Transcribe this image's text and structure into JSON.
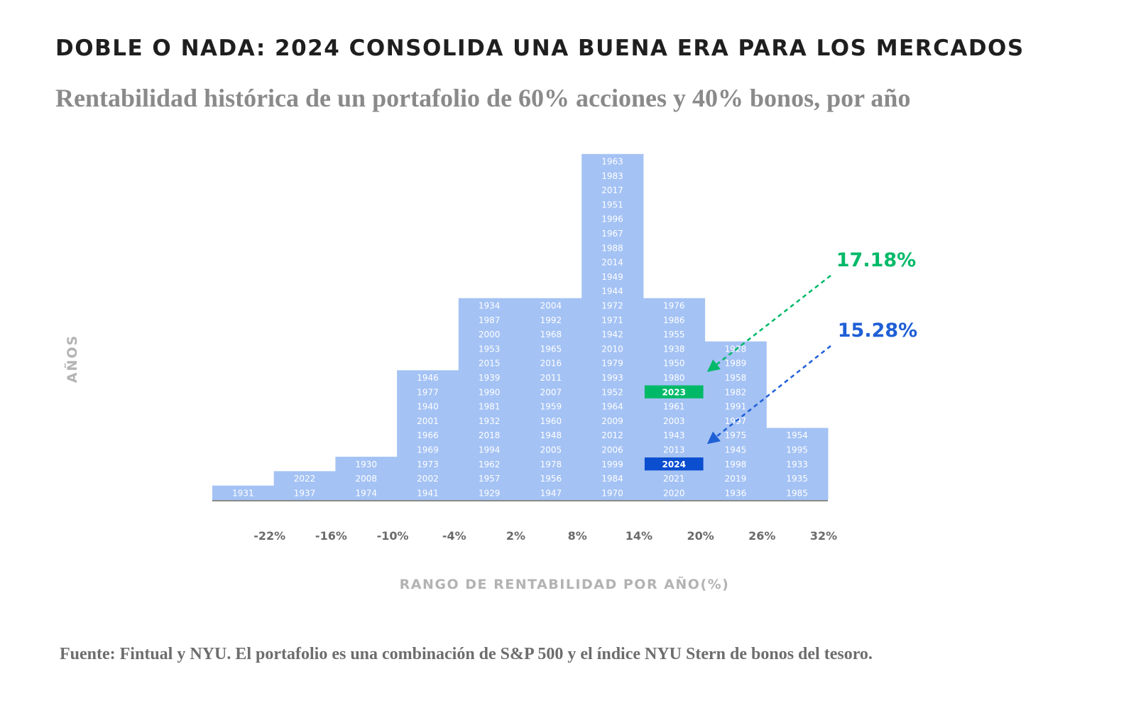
{
  "title": "DOBLE O NADA: 2024 CONSOLIDA UNA BUENA ERA PARA LOS MERCADOS",
  "subtitle": "Rentabilidad histórica de un portafolio de 60% acciones y 40% bonos, por año",
  "source": "Fuente: Fintual y NYU. El portafolio es una combinación de S&P 500 y el índice NYU Stern de bonos del tesoro.",
  "colors": {
    "bar": "#a4c2f4",
    "highlight_2023": "#00b968",
    "highlight_2024": "#0b4fd0",
    "axis": "#8a8a8a"
  },
  "chart_data": {
    "type": "histogram",
    "xlabel": "RANGO DE RENTABILIDAD POR AÑO(%)",
    "ylabel": "AÑOS",
    "x_ticks": [
      "-22%",
      "-16%",
      "-10%",
      "-4%",
      "2%",
      "8%",
      "14%",
      "20%",
      "26%",
      "32%"
    ],
    "bins": [
      {
        "years": [
          "1931"
        ]
      },
      {
        "years": [
          "2022",
          "1937"
        ]
      },
      {
        "years": [
          "1930",
          "2008",
          "1974"
        ]
      },
      {
        "years": [
          "1946",
          "1977",
          "1940",
          "2001",
          "1966",
          "1969",
          "1973",
          "2002",
          "1941"
        ]
      },
      {
        "years": [
          "1934",
          "1987",
          "2000",
          "1953",
          "2015",
          "1939",
          "1990",
          "1981",
          "1932",
          "2018",
          "1994",
          "1962",
          "1957",
          "1929"
        ]
      },
      {
        "years": [
          "2004",
          "1992",
          "1968",
          "1965",
          "2016",
          "2011",
          "2007",
          "1959",
          "1960",
          "1948",
          "2005",
          "1978",
          "1956",
          "1947"
        ]
      },
      {
        "years": [
          "1963",
          "1983",
          "2017",
          "1951",
          "1996",
          "1967",
          "1988",
          "2014",
          "1949",
          "1944",
          "1972",
          "1971",
          "1942",
          "2010",
          "1979",
          "1993",
          "1952",
          "1964",
          "2009",
          "2012",
          "2006",
          "1999",
          "1984",
          "1970"
        ]
      },
      {
        "years": [
          "1976",
          "1986",
          "1955",
          "1938",
          "1950",
          "1980",
          "2023",
          "1961",
          "2003",
          "1943",
          "2013",
          "2024",
          "2021",
          "2020"
        ]
      },
      {
        "years": [
          "1928",
          "1989",
          "1958",
          "1982",
          "1991",
          "1997",
          "1975",
          "1945",
          "1998",
          "2019",
          "1936"
        ]
      },
      {
        "years": [
          "1954",
          "1995",
          "1933",
          "1935",
          "1985"
        ]
      }
    ],
    "highlights": [
      {
        "year": "2023",
        "value": 17.18,
        "label": "17.18%",
        "color": "#00b968"
      },
      {
        "year": "2024",
        "value": 15.28,
        "label": "15.28%",
        "color": "#1f5fd6"
      }
    ]
  }
}
